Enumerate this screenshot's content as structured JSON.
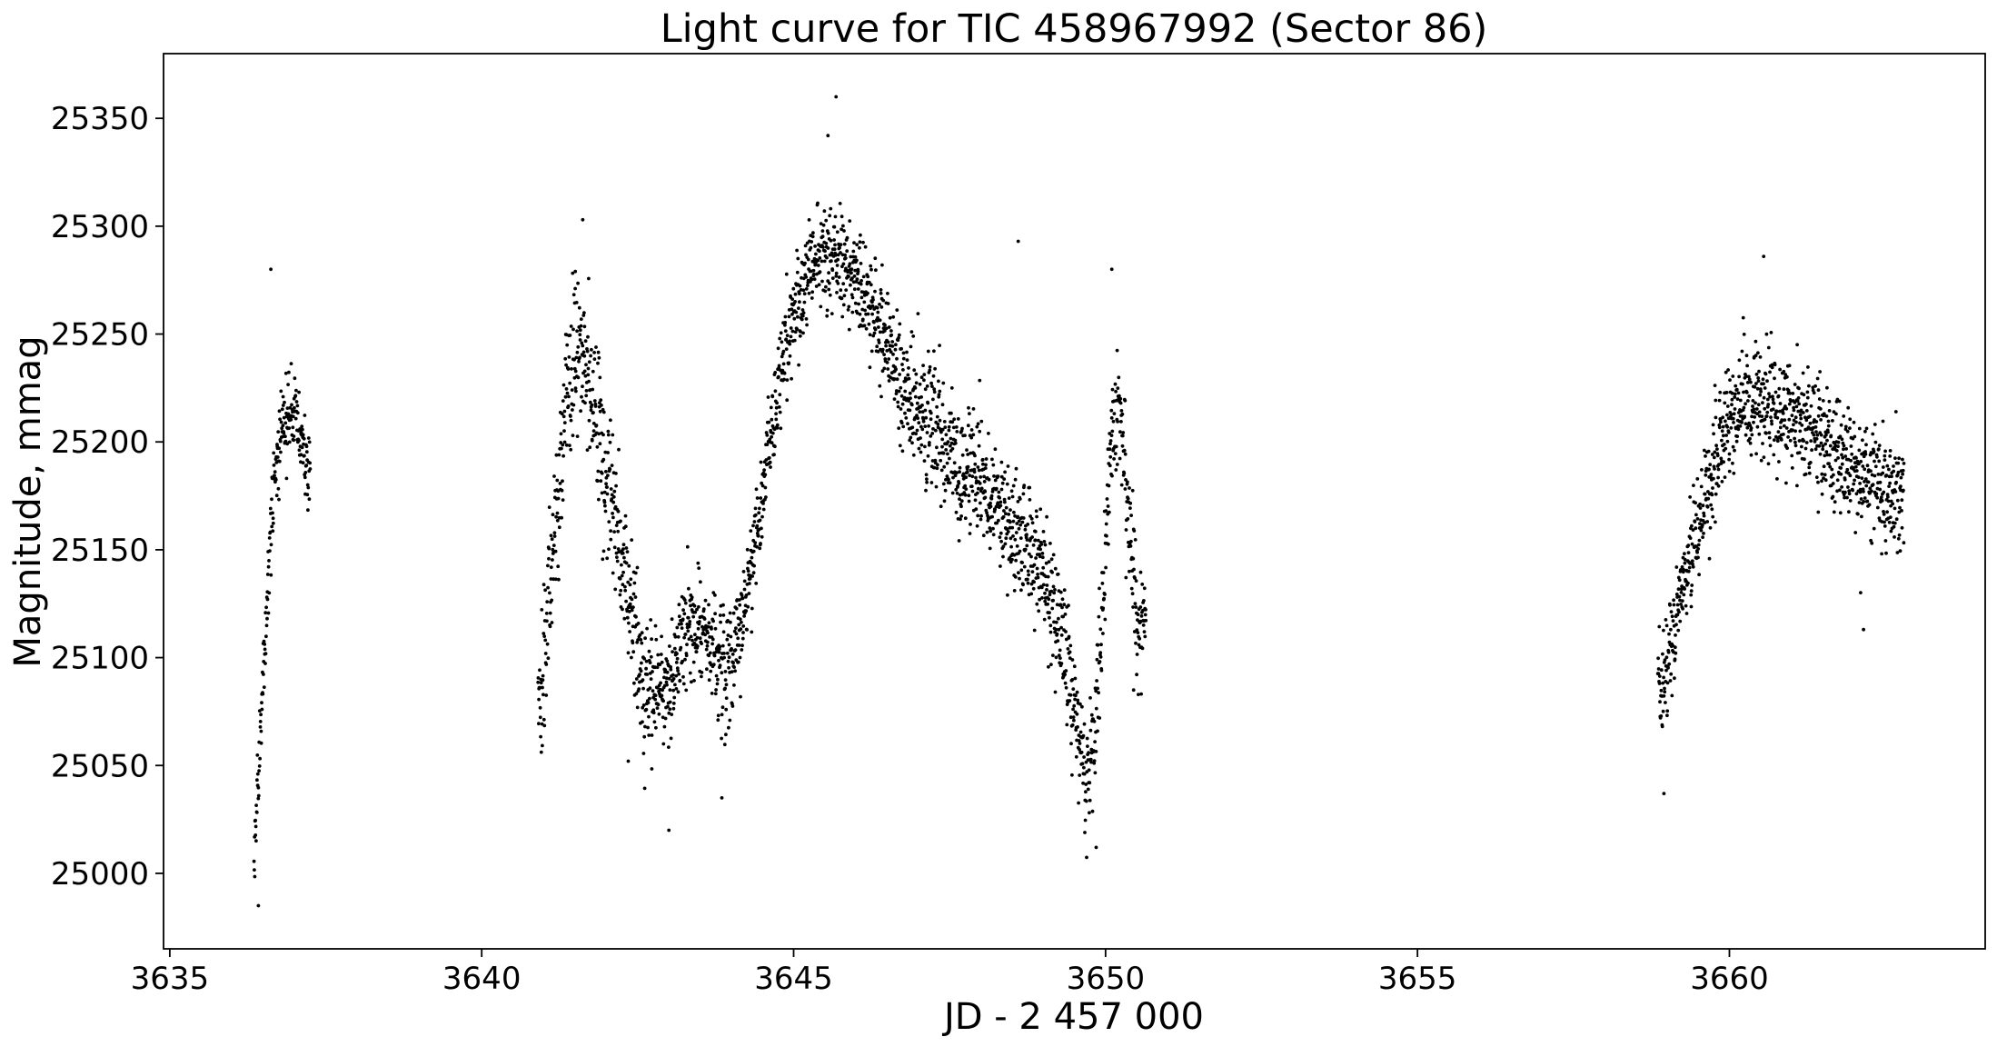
{
  "chart_data": {
    "type": "scatter",
    "title": "Light curve for TIC 458967992 (Sector 86)",
    "xlabel": "JD - 2 457 000",
    "ylabel": "Magnitude, mmag",
    "xlim": [
      3634.9,
      3664.1
    ],
    "ylim": [
      24965,
      25380
    ],
    "xticks": [
      3635,
      3640,
      3645,
      3650,
      3655,
      3660
    ],
    "xtick_labels": [
      "3635",
      "3640",
      "3645",
      "3650",
      "3655",
      "3660"
    ],
    "yticks": [
      25000,
      25050,
      25100,
      25150,
      25200,
      25250,
      25300,
      25350
    ],
    "ytick_labels": [
      "25000",
      "25050",
      "25100",
      "25150",
      "25200",
      "25250",
      "25300",
      "25350"
    ],
    "grid": false,
    "legend": "none",
    "marker_color": "#000000",
    "series": [
      {
        "trend": {
          "x": [
            3636.35,
            3636.45,
            3636.55,
            3636.65,
            3636.8,
            3637.0,
            3637.2,
            3640.95,
            3641.1,
            3641.3,
            3641.5,
            3641.7,
            3642.0,
            3642.3,
            3642.6,
            3643.0,
            3643.3,
            3643.6,
            3643.9,
            3644.2,
            3644.5,
            3644.8,
            3645.1,
            3645.4,
            3645.7,
            3646.0,
            3646.4,
            3646.8,
            3647.2,
            3647.6,
            3648.0,
            3648.5,
            3649.0,
            3649.3,
            3649.5,
            3649.7,
            3649.85,
            3650.0,
            3650.1,
            3650.2,
            3650.3,
            3650.4,
            3650.5,
            3658.9,
            3659.1,
            3659.3,
            3659.6,
            3659.9,
            3660.2,
            3660.6,
            3661.0,
            3661.4,
            3661.8,
            3662.2,
            3662.5,
            3662.8
          ],
          "y": [
            25005,
            25060,
            25120,
            25175,
            25210,
            25215,
            25190,
            25085,
            25140,
            25200,
            25245,
            25230,
            25180,
            25135,
            25090,
            25085,
            25115,
            25110,
            25095,
            25120,
            25175,
            25235,
            25270,
            25288,
            25285,
            25275,
            25255,
            25225,
            25205,
            25190,
            25180,
            25160,
            25140,
            25115,
            25075,
            25040,
            25075,
            25150,
            25200,
            25225,
            25195,
            25150,
            25120,
            25085,
            25110,
            25140,
            25170,
            25205,
            25220,
            25218,
            25212,
            25205,
            25195,
            25185,
            25178,
            25175
          ]
        },
        "scatter_mmag": [
          [
            3636.35,
            3640.95,
            12
          ],
          [
            3640.95,
            3642.8,
            24
          ],
          [
            3643.0,
            3644.2,
            18
          ],
          [
            3644.2,
            3645.3,
            14
          ],
          [
            3645.3,
            3646.6,
            15
          ],
          [
            3646.6,
            3649.5,
            19
          ],
          [
            3649.5,
            3650.6,
            20
          ],
          [
            3658.9,
            3660.0,
            16
          ],
          [
            3660.0,
            3662.9,
            17
          ]
        ],
        "gaps": [
          [
            3637.25,
            3640.9
          ],
          [
            3650.65,
            3658.85
          ]
        ],
        "outliers": [
          [
            3636.62,
            25280
          ],
          [
            3636.42,
            24985
          ],
          [
            3641.62,
            25303
          ],
          [
            3641.5,
            25279
          ],
          [
            3642.35,
            25052
          ],
          [
            3643.0,
            25020
          ],
          [
            3643.85,
            25035
          ],
          [
            3645.68,
            25360
          ],
          [
            3645.55,
            25342
          ],
          [
            3648.6,
            25293
          ],
          [
            3650.1,
            25280
          ],
          [
            3649.85,
            25012
          ],
          [
            3650.45,
            25085
          ],
          [
            3658.95,
            25037
          ],
          [
            3660.55,
            25286
          ],
          [
            3662.15,
            25113
          ]
        ]
      }
    ]
  }
}
